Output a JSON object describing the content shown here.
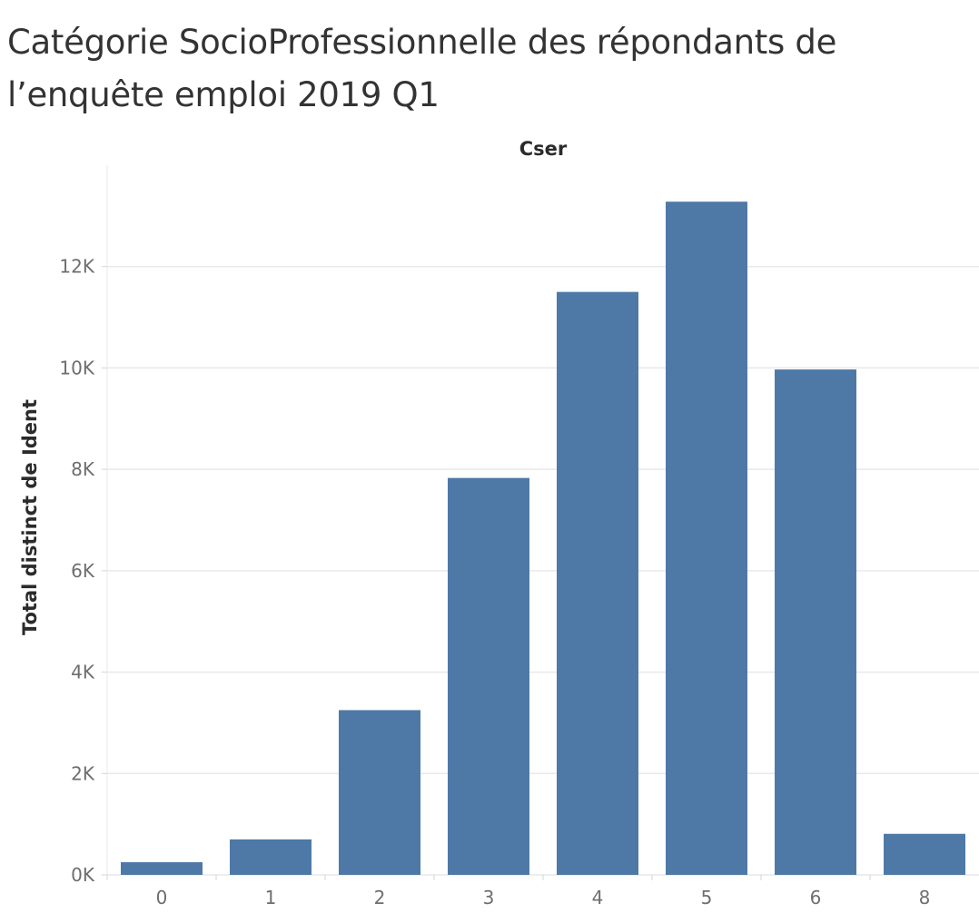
{
  "chart_data": {
    "type": "bar",
    "title": "Catégorie SocioProfessionnelle des répondants de l’enquête emploi 2019 Q1",
    "column_header": "Cser",
    "xlabel": "",
    "ylabel": "Total distinct de Ident",
    "categories": [
      "0",
      "1",
      "2",
      "3",
      "4",
      "5",
      "6",
      "8"
    ],
    "values": [
      250,
      700,
      3250,
      7830,
      11500,
      13280,
      9970,
      810
    ],
    "ylim": [
      0,
      14000
    ],
    "yticks": [
      {
        "value": 0,
        "label": "0K"
      },
      {
        "value": 2000,
        "label": "2K"
      },
      {
        "value": 4000,
        "label": "4K"
      },
      {
        "value": 6000,
        "label": "6K"
      },
      {
        "value": 8000,
        "label": "8K"
      },
      {
        "value": 10000,
        "label": "10K"
      },
      {
        "value": 12000,
        "label": "12K"
      }
    ],
    "grid": true,
    "legend": "none",
    "bar_color": "#4e79a7",
    "grid_color": "#e9e9e9"
  }
}
